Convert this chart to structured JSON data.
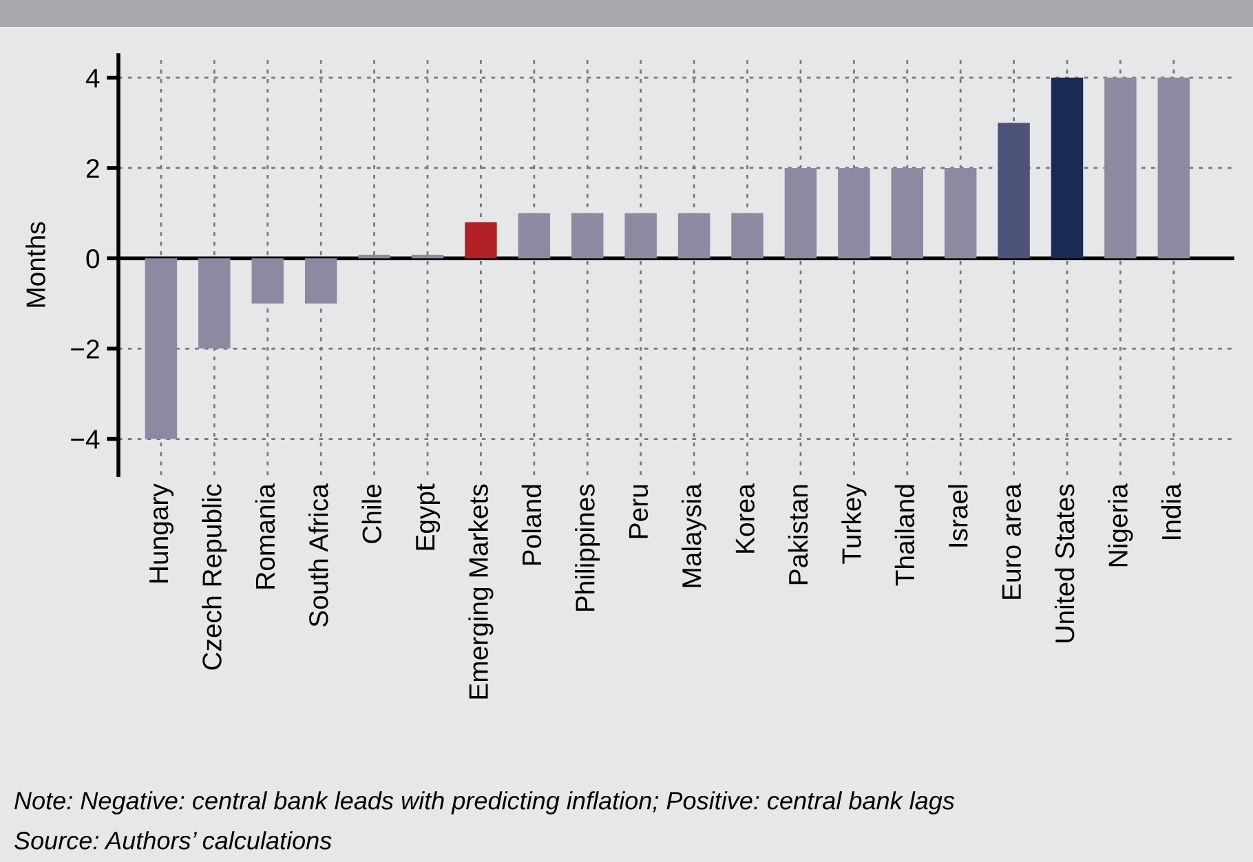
{
  "chart_data": {
    "type": "bar",
    "ylabel": "Months",
    "categories": [
      "Hungary",
      "Czech Republic",
      "Romania",
      "South Africa",
      "Chile",
      "Egypt",
      "Emerging Markets",
      "Poland",
      "Philippines",
      "Peru",
      "Malaysia",
      "Korea",
      "Pakistan",
      "Turkey",
      "Thailand",
      "Israel",
      "Euro area",
      "United States",
      "Nigeria",
      "India"
    ],
    "values": [
      -4,
      -2,
      -1,
      -1,
      0.08,
      0.08,
      0.8,
      1,
      1,
      1,
      1,
      1,
      2,
      2,
      2,
      2,
      3,
      4,
      4,
      4
    ],
    "colors": [
      "#8b8aa0",
      "#8b8aa0",
      "#8b8aa0",
      "#8b8aa0",
      "#8b8aa0",
      "#8b8aa0",
      "#b02025",
      "#8b8aa0",
      "#8b8aa0",
      "#8b8aa0",
      "#8b8aa0",
      "#8b8aa0",
      "#8b8aa0",
      "#8b8aa0",
      "#8b8aa0",
      "#8b8aa0",
      "#4d5278",
      "#1b2a55",
      "#8b8aa0",
      "#8b8aa0"
    ],
    "ylim": [
      -4.8,
      4.5
    ],
    "yticks": [
      {
        "value": -4,
        "label": "−4"
      },
      {
        "value": -2,
        "label": "−2"
      },
      0,
      2,
      4
    ],
    "grid": true,
    "annotations": [
      "Note: Negative: central bank leads with predicting inflation; Positive: central bank lags",
      "Source: Authors’ calculations"
    ]
  }
}
